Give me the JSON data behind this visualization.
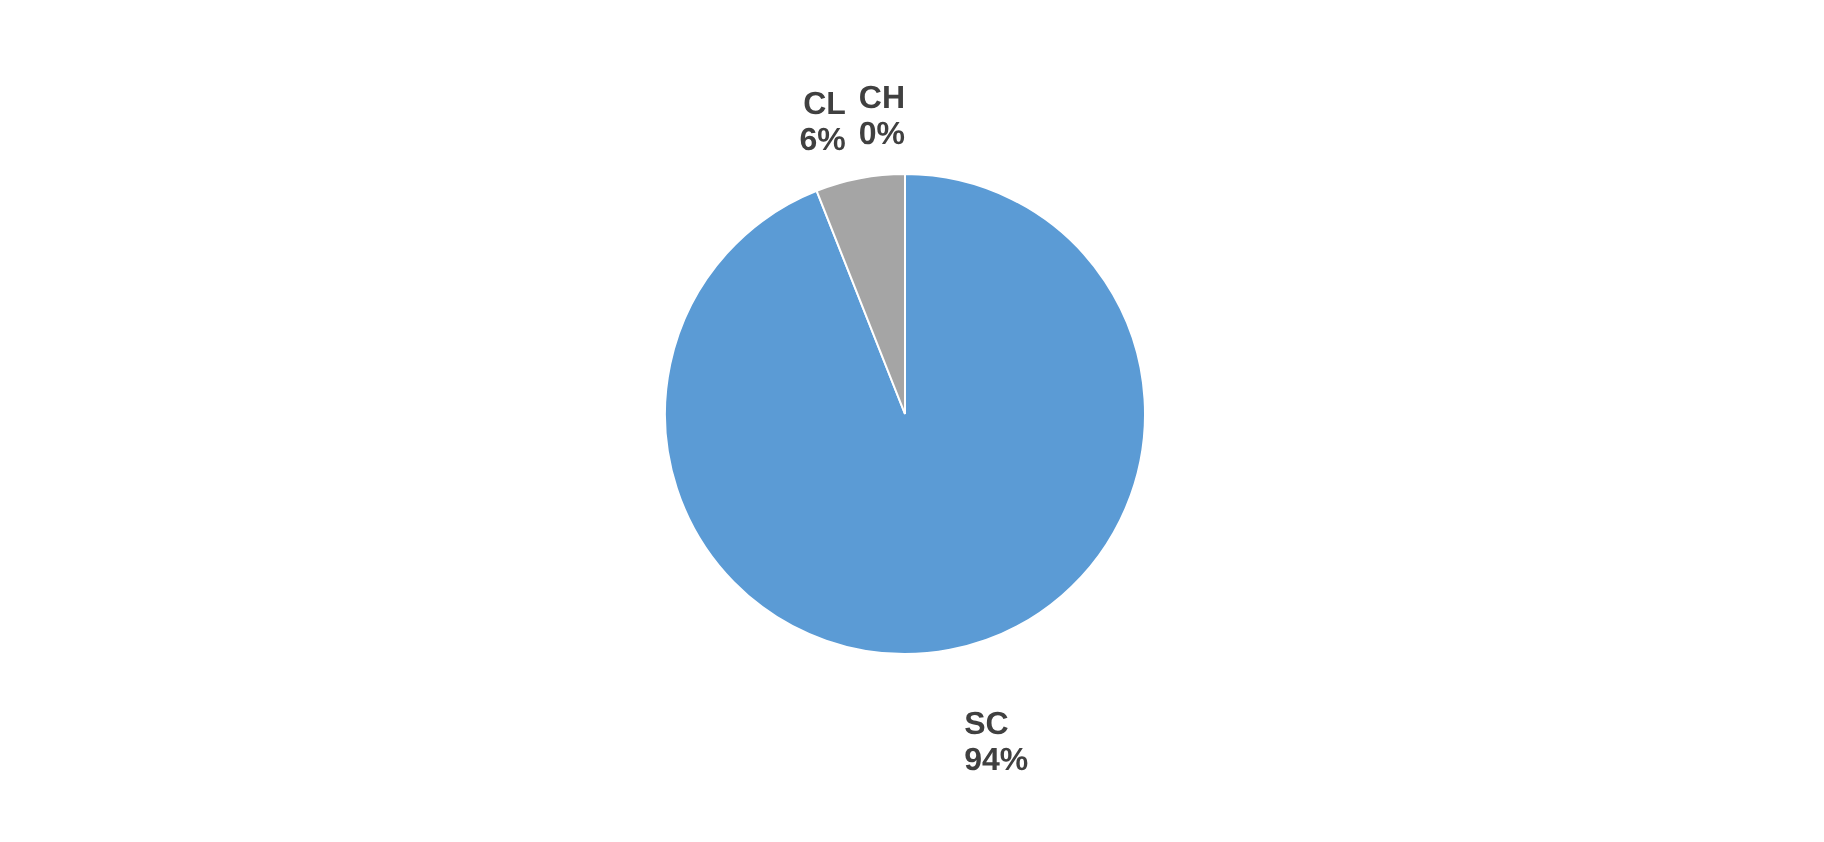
{
  "chart_data": {
    "type": "pie",
    "categories": [
      "SC",
      "CL",
      "CH"
    ],
    "values": [
      94,
      6,
      0
    ],
    "colors": [
      "#5b9bd5",
      "#a5a5a5",
      "#ed7d31"
    ],
    "value_labels": [
      "94%",
      "6%",
      "0%"
    ],
    "legend": false
  }
}
